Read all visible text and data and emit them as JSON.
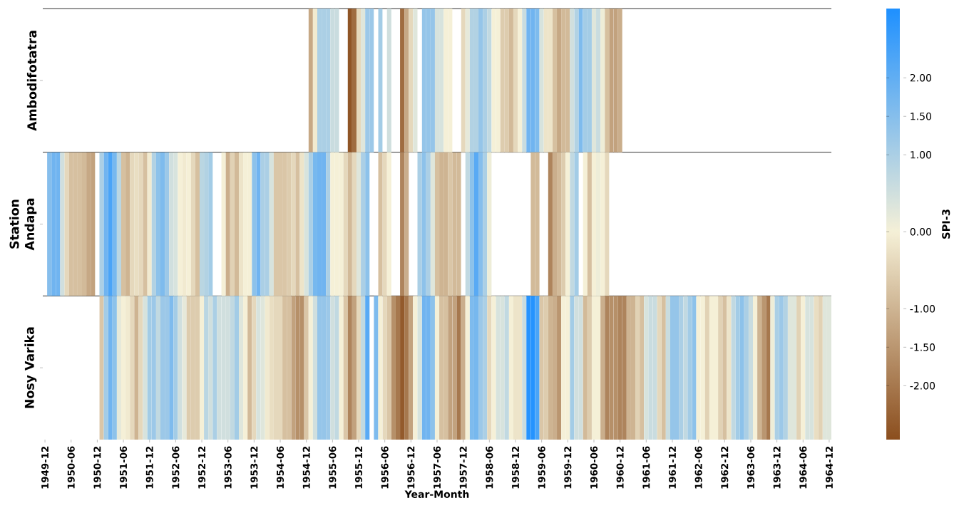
{
  "chart_data": {
    "type": "heatmap",
    "xlabel": "Year-Month",
    "ylabel": "Station",
    "clabel": "SPI-3",
    "categories": [
      "1949-12",
      null,
      null,
      null,
      null,
      null,
      "1950-06",
      null,
      null,
      null,
      null,
      null,
      "1950-12",
      null,
      null,
      null,
      null,
      null,
      "1951-06",
      null,
      null,
      null,
      null,
      null,
      "1951-12",
      null,
      null,
      null,
      null,
      null,
      "1952-06",
      null,
      null,
      null,
      null,
      null,
      "1952-12",
      null,
      null,
      null,
      null,
      null,
      "1953-06",
      null,
      null,
      null,
      null,
      null,
      "1953-12",
      null,
      null,
      null,
      null,
      null,
      "1954-06",
      null,
      null,
      null,
      null,
      null,
      "1954-12",
      null,
      null,
      null,
      null,
      null,
      "1955-06",
      null,
      null,
      null,
      null,
      null,
      "1955-12",
      null,
      null,
      null,
      null,
      null,
      "1956-06",
      null,
      null,
      null,
      null,
      null,
      "1956-12",
      null,
      null,
      null,
      null,
      null,
      "1957-06",
      null,
      null,
      null,
      null,
      null,
      "1957-12",
      null,
      null,
      null,
      null,
      null,
      "1958-06",
      null,
      null,
      null,
      null,
      null,
      "1958-12",
      null,
      null,
      null,
      null,
      null,
      "1959-06",
      null,
      null,
      null,
      null,
      null,
      "1959-12",
      null,
      null,
      null,
      null,
      null,
      "1960-06",
      null,
      null,
      null,
      null,
      null,
      "1960-12",
      null,
      null,
      null,
      null,
      null,
      "1961-06",
      null,
      null,
      null,
      null,
      null,
      "1961-12",
      null,
      null,
      null,
      null,
      null,
      "1962-06",
      null,
      null,
      null,
      null,
      null,
      "1962-12",
      null,
      null,
      null,
      null,
      null,
      "1963-06",
      null,
      null,
      null,
      null,
      null,
      "1963-12",
      null,
      null,
      null,
      null,
      null,
      "1964-06",
      null,
      null,
      null,
      null,
      null,
      "1964-12"
    ],
    "y_categories": [
      "Ambodifotatra",
      "Andapa",
      "Nosy Varika"
    ],
    "cells": [
      [
        null,
        null,
        null,
        null,
        null,
        null,
        null,
        null,
        null,
        null,
        null,
        null,
        null,
        null,
        null,
        null,
        null,
        null,
        null,
        null,
        null,
        null,
        null,
        null,
        null,
        null,
        null,
        null,
        null,
        null,
        null,
        null,
        null,
        null,
        null,
        null,
        null,
        null,
        null,
        null,
        null,
        null,
        null,
        null,
        null,
        null,
        null,
        null,
        null,
        null,
        null,
        null,
        null,
        null,
        null,
        null,
        null,
        null,
        null,
        null,
        null,
        -1.2,
        -0.1,
        1.0,
        1.0,
        1.0,
        0.6,
        0.6,
        null,
        null,
        -2.6,
        -2.2,
        -0.4,
        0.3,
        1.2,
        1.2,
        null,
        1.1,
        null,
        0.5,
        null,
        null,
        -2.2,
        -1.2,
        -0.4,
        0.3,
        null,
        1.3,
        1.3,
        1.3,
        0.4,
        0.4,
        0.0,
        0.0,
        null,
        null,
        -0.4,
        0.2,
        0.9,
        0.9,
        1.3,
        1.0,
        0.7,
        0.0,
        0.0,
        -0.6,
        -0.6,
        -0.9,
        -0.4,
        0.0,
        0.6,
        1.8,
        1.8,
        1.6,
        0.4,
        -0.2,
        -0.2,
        -0.8,
        -1.2,
        -0.9,
        -0.9,
        0.5,
        0.9,
        1.6,
        1.1,
        1.1,
        0.3,
        0.6,
        0.1,
        -0.8,
        -1.3,
        -1.3,
        -1.1,
        null,
        null,
        null,
        null,
        null,
        null,
        null,
        null,
        null,
        null,
        null,
        null,
        null,
        null,
        null,
        null,
        null,
        null,
        null,
        null,
        null,
        null,
        null,
        null,
        null,
        null,
        null,
        null,
        null,
        null,
        null,
        null,
        null,
        null,
        null,
        null,
        null,
        null,
        null,
        null,
        null,
        null,
        null,
        null,
        null,
        null,
        null,
        null
      ],
      [
        null,
        1.5,
        1.8,
        1.8,
        0.5,
        -0.4,
        -0.8,
        -0.8,
        -0.8,
        -0.9,
        -1.2,
        -1.3,
        null,
        1.0,
        1.8,
        2.3,
        1.7,
        0.8,
        -0.8,
        -1.0,
        -0.4,
        -0.3,
        -0.4,
        -0.8,
        -0.1,
        0.9,
        1.4,
        1.6,
        1.2,
        0.5,
        0.4,
        0.0,
        -0.1,
        0.0,
        -0.4,
        -0.8,
        0.8,
        0.9,
        1.1,
        null,
        null,
        0.0,
        -1.1,
        -0.5,
        -0.9,
        -0.2,
        0.0,
        0.0,
        1.4,
        1.8,
        1.0,
        1.0,
        0.4,
        -0.7,
        -0.7,
        -0.7,
        -0.6,
        -0.4,
        -0.8,
        -0.2,
        0.4,
        1.0,
        1.7,
        1.8,
        1.8,
        1.0,
        0.0,
        0.0,
        0.0,
        -0.4,
        -0.9,
        -0.4,
        0.3,
        1.0,
        1.4,
        null,
        null,
        -0.8,
        -0.4,
        0.0,
        null,
        null,
        -1.8,
        -1.1,
        null,
        null,
        1.0,
        1.4,
        1.0,
        0.3,
        -0.8,
        -1.0,
        -1.0,
        -0.7,
        -0.9,
        -0.9,
        null,
        0.7,
        1.4,
        2.1,
        1.5,
        1.0,
        0.1,
        null,
        null,
        null,
        null,
        null,
        null,
        null,
        null,
        null,
        -0.9,
        -0.9,
        null,
        null,
        -1.8,
        -1.1,
        -0.9,
        -0.6,
        0.0,
        0.7,
        1.1,
        null,
        0.0,
        -0.8,
        0.0,
        0.1,
        0.0,
        -0.4,
        null,
        null,
        null,
        null,
        null,
        null,
        null,
        null,
        null,
        null,
        null,
        null,
        null,
        null,
        null,
        null,
        null,
        null,
        null,
        null,
        null,
        null,
        null,
        null,
        null,
        null,
        null,
        null,
        null,
        null,
        null,
        null,
        null,
        null,
        null,
        null,
        null,
        null,
        null,
        null,
        null,
        null,
        null,
        null,
        null,
        null,
        null,
        null,
        null,
        null,
        null
      ],
      [
        null,
        null,
        null,
        null,
        null,
        null,
        null,
        null,
        null,
        null,
        null,
        null,
        null,
        -0.7,
        1.1,
        1.8,
        1.4,
        0.2,
        0.0,
        -0.1,
        -0.4,
        -1.0,
        -0.4,
        0.4,
        1.1,
        1.2,
        0.7,
        1.2,
        1.2,
        1.6,
        1.1,
        0.5,
        0.2,
        -0.6,
        -0.6,
        -0.6,
        0.0,
        0.8,
        0.5,
        1.0,
        0.5,
        0.5,
        0.5,
        0.7,
        1.1,
        0.3,
        0.0,
        -0.9,
        -0.4,
        0.4,
        0.3,
        -0.1,
        -0.3,
        -0.4,
        -0.4,
        -0.8,
        -0.8,
        -1.3,
        -1.6,
        -1.6,
        -0.7,
        0.0,
        0.5,
        1.3,
        1.3,
        1.2,
        0.5,
        0.7,
        0.0,
        -0.7,
        -1.8,
        -1.3,
        -0.4,
        0.7,
        2.1,
        null,
        1.6,
        0.0,
        -0.4,
        -0.7,
        -1.6,
        -2.0,
        -2.5,
        -2.0,
        -1.3,
        0.0,
        0.4,
        1.8,
        1.8,
        1.4,
        0.0,
        -0.8,
        -0.8,
        -1.3,
        -1.3,
        -2.0,
        -1.1,
        0.0,
        1.6,
        1.7,
        1.2,
        1.0,
        -0.4,
        0.0,
        0.4,
        0.4,
        0.7,
        0.0,
        -0.2,
        -0.2,
        0.6,
        2.8,
        2.8,
        2.3,
        -0.7,
        -0.6,
        -1.0,
        -1.1,
        -1.5,
        0.0,
        0.0,
        1.1,
        0.5,
        0.5,
        -0.9,
        -0.6,
        0.0,
        0.0,
        -1.1,
        -1.8,
        -1.6,
        -1.6,
        -1.8,
        -1.8,
        -1.0,
        -1.0,
        -0.5,
        -0.8,
        0.4,
        0.6,
        0.6,
        -0.4,
        -0.8,
        0.6,
        1.3,
        1.3,
        1.0,
        0.7,
        1.1,
        1.4,
        0.0,
        0.0,
        -0.5,
        0.0,
        0.0,
        -0.5,
        -0.8,
        -0.2,
        0.7,
        1.1,
        1.4,
        1.0,
        0.6,
        0.0,
        -1.0,
        -1.5,
        -2.0,
        0.1,
        1.0,
        1.2,
        0.9,
        0.3,
        0.3,
        -0.5,
        0.0,
        0.4,
        0.4,
        -0.3,
        -0.5,
        0.3,
        0.3
      ]
    ],
    "clim": [
      -2.7,
      2.9
    ],
    "cticks": [
      {
        "value": -2,
        "label": "-2.00"
      },
      {
        "value": -1.5,
        "label": "-1.50"
      },
      {
        "value": -1,
        "label": "-1.00"
      },
      {
        "value": 0,
        "label": "0.00"
      },
      {
        "value": 1,
        "label": "1.00"
      },
      {
        "value": 1.5,
        "label": "1.50"
      },
      {
        "value": 2,
        "label": "2.00"
      }
    ]
  }
}
